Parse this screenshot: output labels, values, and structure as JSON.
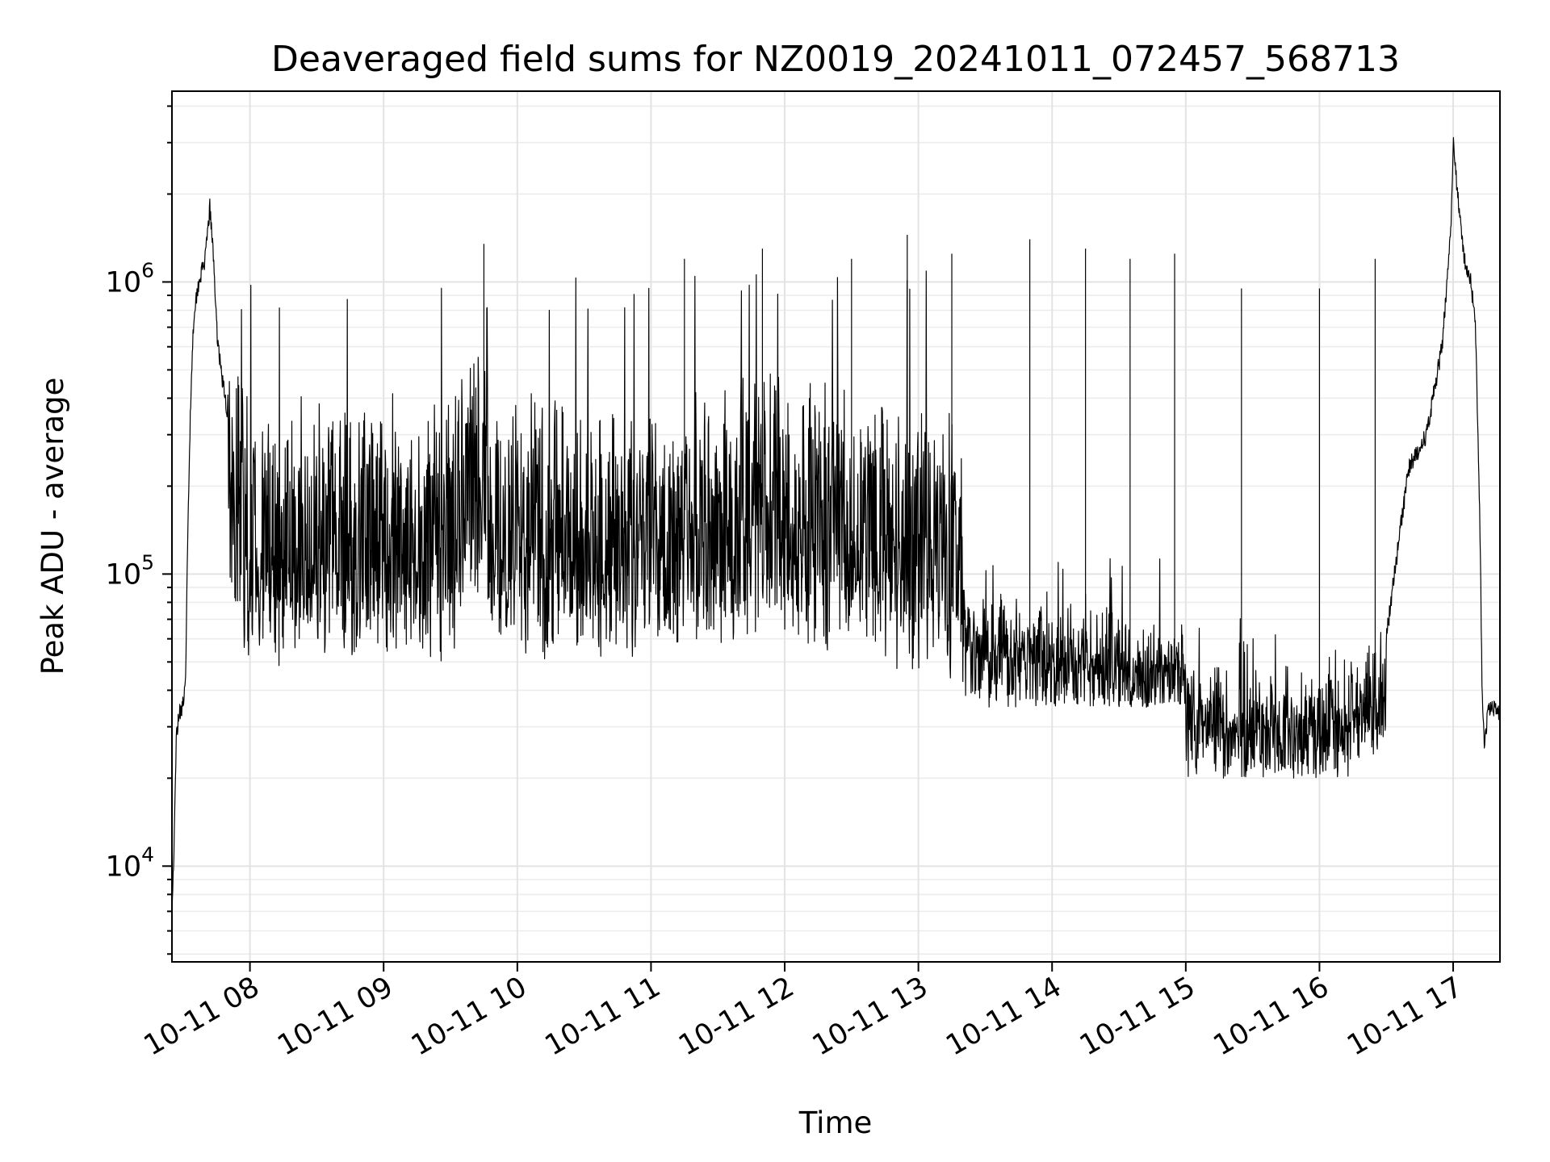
{
  "chart_data": {
    "type": "line",
    "title": "Deaveraged field sums for NZ0019_20241011_072457_568713",
    "xlabel": "Time",
    "ylabel": "Peak ADU - average",
    "y_scale": "log",
    "ylim": [
      4700,
      4500000
    ],
    "xlim": [
      "2024-10-11 07:25",
      "2024-10-11 17:21"
    ],
    "x_ticks": [
      {
        "x": "2024-10-11 08:00",
        "label": "10-11 08"
      },
      {
        "x": "2024-10-11 09:00",
        "label": "10-11 09"
      },
      {
        "x": "2024-10-11 10:00",
        "label": "10-11 10"
      },
      {
        "x": "2024-10-11 11:00",
        "label": "10-11 11"
      },
      {
        "x": "2024-10-11 12:00",
        "label": "10-11 12"
      },
      {
        "x": "2024-10-11 13:00",
        "label": "10-11 13"
      },
      {
        "x": "2024-10-11 14:00",
        "label": "10-11 14"
      },
      {
        "x": "2024-10-11 15:00",
        "label": "10-11 15"
      },
      {
        "x": "2024-10-11 16:00",
        "label": "10-11 16"
      },
      {
        "x": "2024-10-11 17:00",
        "label": "10-11 17"
      }
    ],
    "y_ticks": [
      {
        "value": 10000,
        "base": "10",
        "exp": "4"
      },
      {
        "value": 100000,
        "base": "10",
        "exp": "5"
      },
      {
        "value": 1000000,
        "base": "10",
        "exp": "6"
      }
    ],
    "grid": "major and minor",
    "series_color": "#000000",
    "series": [
      {
        "points": [
          [
            "2024-10-11 07:25",
            7000
          ],
          [
            "2024-10-11 07:26",
            12000
          ],
          [
            "2024-10-11 07:27",
            28000
          ],
          [
            "2024-10-11 07:28",
            33000
          ],
          [
            "2024-10-11 07:30",
            36000
          ],
          [
            "2024-10-11 07:31",
            40000
          ],
          [
            "2024-10-11 07:32",
            120000
          ],
          [
            "2024-10-11 07:33",
            300000
          ],
          [
            "2024-10-11 07:34",
            550000
          ],
          [
            "2024-10-11 07:35",
            800000
          ],
          [
            "2024-10-11 07:37",
            1000000
          ],
          [
            "2024-10-11 07:40",
            1200000
          ],
          [
            "2024-10-11 07:42",
            1800000
          ],
          [
            "2024-10-11 07:44",
            1100000
          ],
          [
            "2024-10-11 07:45",
            700000
          ],
          [
            "2024-10-11 07:47",
            500000
          ],
          [
            "2024-10-11 07:50",
            350000
          ],
          [
            "2024-10-11 07:53",
            250000
          ],
          [
            "2024-10-11 07:55",
            180000
          ],
          [
            "2024-10-11 07:58",
            130000
          ],
          [
            "2024-10-11 08:00",
            120000
          ],
          [
            "2024-10-11 08:10",
            110000
          ],
          [
            "2024-10-11 08:30",
            115000
          ],
          [
            "2024-10-11 09:00",
            110000
          ],
          [
            "2024-10-11 09:30",
            115000
          ],
          [
            "2024-10-11 09:43",
            400000
          ],
          [
            "2024-10-11 09:46",
            150000
          ],
          [
            "2024-10-11 10:00",
            130000
          ],
          [
            "2024-10-11 10:30",
            120000
          ],
          [
            "2024-10-11 11:00",
            115000
          ],
          [
            "2024-10-11 11:30",
            150000
          ],
          [
            "2024-10-11 12:00",
            180000
          ],
          [
            "2024-10-11 12:30",
            130000
          ],
          [
            "2024-10-11 13:00",
            100000
          ],
          [
            "2024-10-11 13:30",
            60000
          ],
          [
            "2024-10-11 14:00",
            50000
          ],
          [
            "2024-10-11 14:30",
            45000
          ],
          [
            "2024-10-11 15:00",
            35000
          ],
          [
            "2024-10-11 15:30",
            27000
          ],
          [
            "2024-10-11 16:00",
            27000
          ],
          [
            "2024-10-11 16:25",
            40000
          ],
          [
            "2024-10-11 16:30",
            60000
          ],
          [
            "2024-10-11 16:35",
            120000
          ],
          [
            "2024-10-11 16:40",
            230000
          ],
          [
            "2024-10-11 16:48",
            300000
          ],
          [
            "2024-10-11 16:55",
            600000
          ],
          [
            "2024-10-11 16:59",
            1500000
          ],
          [
            "2024-10-11 17:00",
            3000000
          ],
          [
            "2024-10-11 17:02",
            2000000
          ],
          [
            "2024-10-11 17:05",
            1200000
          ],
          [
            "2024-10-11 17:08",
            1000000
          ],
          [
            "2024-10-11 17:10",
            700000
          ],
          [
            "2024-10-11 17:12",
            150000
          ],
          [
            "2024-10-11 17:13",
            40000
          ],
          [
            "2024-10-11 17:14",
            26000
          ],
          [
            "2024-10-11 17:16",
            35000
          ],
          [
            "2024-10-11 17:20",
            34000
          ]
        ],
        "band": [
          {
            "from": "2024-10-11 07:50",
            "to": "2024-10-11 13:20",
            "low": 40000,
            "high": 800000
          },
          {
            "from": "2024-10-11 13:20",
            "to": "2024-10-11 15:00",
            "low": 35000,
            "high": 80000
          },
          {
            "from": "2024-10-11 15:00",
            "to": "2024-10-11 16:30",
            "low": 20000,
            "high": 50000
          }
        ],
        "spikes": [
          [
            "2024-10-11 09:45",
            1350000
          ],
          [
            "2024-10-11 11:15",
            1200000
          ],
          [
            "2024-10-11 11:50",
            1300000
          ],
          [
            "2024-10-11 12:30",
            1200000
          ],
          [
            "2024-10-11 12:55",
            1450000
          ],
          [
            "2024-10-11 13:15",
            1250000
          ],
          [
            "2024-10-11 13:50",
            1400000
          ],
          [
            "2024-10-11 14:15",
            1300000
          ],
          [
            "2024-10-11 14:35",
            1200000
          ],
          [
            "2024-10-11 14:55",
            1250000
          ],
          [
            "2024-10-11 15:25",
            950000
          ],
          [
            "2024-10-11 16:00",
            950000
          ],
          [
            "2024-10-11 16:25",
            1200000
          ]
        ]
      }
    ]
  }
}
